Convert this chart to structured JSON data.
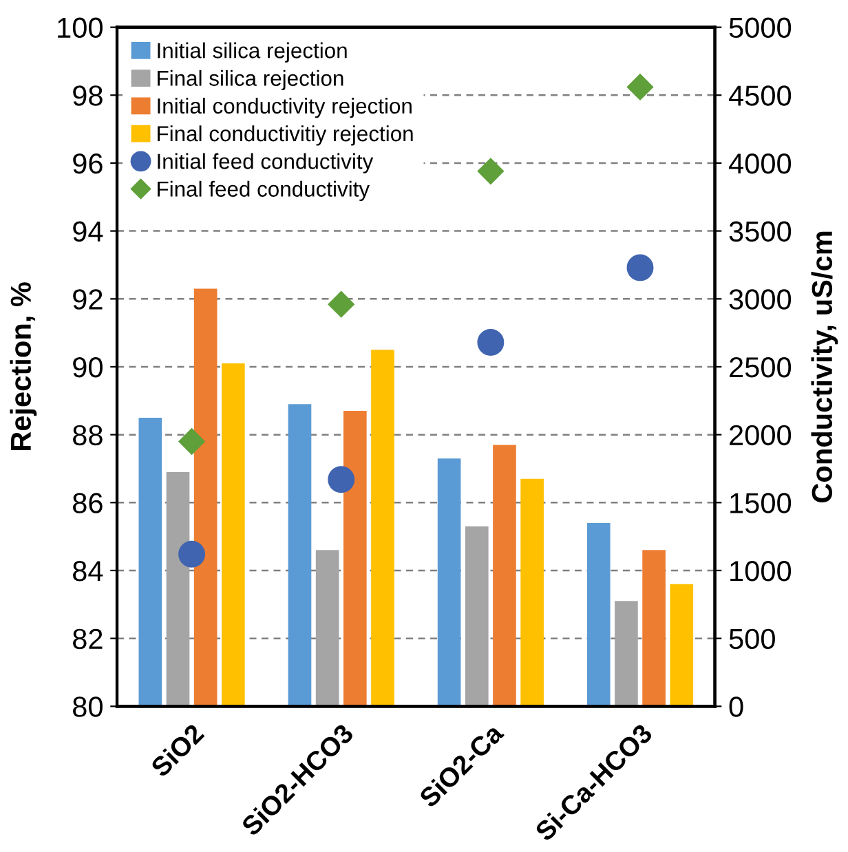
{
  "chart_data": {
    "type": "bar",
    "ylabel": "Rejection, %",
    "y2label": "Conductivity, uS/cm",
    "categories": [
      "SiO2",
      "SiO2-HCO3",
      "SiO2-Ca",
      "Si-Ca-HCO3"
    ],
    "series": [
      {
        "name": "Initial silica rejection",
        "color": "#5b9bd5",
        "values": [
          88.5,
          88.9,
          87.3,
          85.4
        ]
      },
      {
        "name": "Final silica rejection",
        "color": "#a5a5a5",
        "values": [
          86.9,
          84.6,
          85.3,
          83.1
        ]
      },
      {
        "name": "Initial conductivity rejection",
        "color": "#ed7d31",
        "values": [
          92.3,
          88.7,
          87.7,
          84.6
        ]
      },
      {
        "name": "Final conductivitiy rejection",
        "color": "#ffc000",
        "values": [
          90.1,
          90.5,
          86.7,
          83.6
        ]
      },
      {
        "name": "Initial feed conductivity",
        "type": "scatter",
        "axis": "y2",
        "marker": "circle",
        "color": "#4064b0",
        "x": [
          "SiO2",
          "SiO2-HCO3",
          "SiO2-Ca",
          "Si-Ca-HCO3"
        ],
        "values": [
          1120,
          1670,
          2680,
          3230
        ]
      },
      {
        "name": "Final feed conductivity",
        "type": "scatter",
        "axis": "y2",
        "marker": "diamond",
        "color": "#5fa03a",
        "x": [
          "SiO2",
          "SiO2-HCO3",
          "SiO2-Ca",
          "Si-Ca-HCO3"
        ],
        "values": [
          1950,
          2960,
          3940,
          4560
        ]
      }
    ],
    "ylim": [
      80,
      100
    ],
    "yticks": [
      80,
      82,
      84,
      86,
      88,
      90,
      92,
      94,
      96,
      98,
      100
    ],
    "y2lim": [
      0,
      5000
    ],
    "y2ticks": [
      0,
      500,
      1000,
      1500,
      2000,
      2500,
      3000,
      3500,
      4000,
      4500,
      5000
    ],
    "grid": "y",
    "legend": "top left"
  }
}
